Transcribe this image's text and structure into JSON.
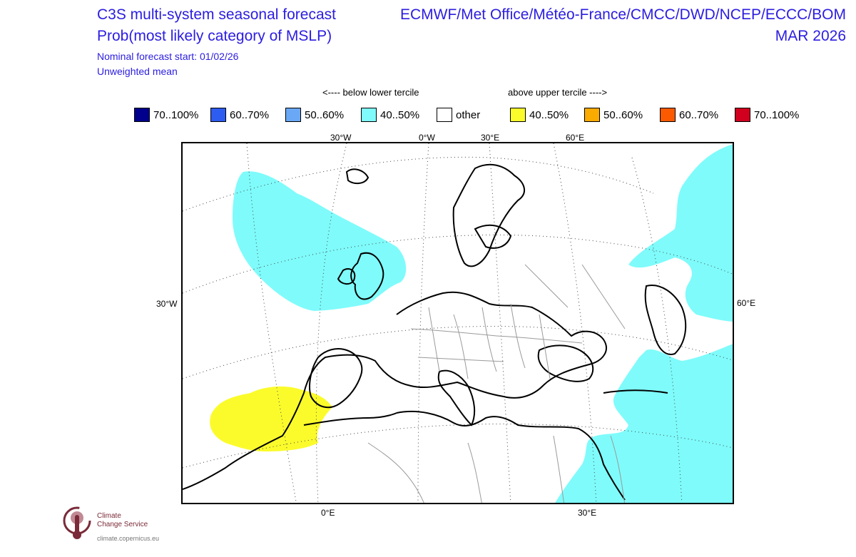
{
  "header": {
    "title_line1": "C3S multi-system seasonal forecast",
    "title_line2": "Prob(most likely category of MSLP)",
    "nominal_start": "Nominal forecast start: 01/02/26",
    "weighting": "Unweighted mean",
    "centres": "ECMWF/Met Office/Météo-France/CMCC/DWD/NCEP/ECCC/BOM",
    "valid_month": "MAR 2026"
  },
  "legend": {
    "below_label": "<---- below lower tercile",
    "above_label": "above upper tercile ---->",
    "items": [
      {
        "label": "70..100%",
        "color": "#00008c"
      },
      {
        "label": "60..70%",
        "color": "#2d5cf0"
      },
      {
        "label": "50..60%",
        "color": "#6aa8f5"
      },
      {
        "label": "40..50%",
        "color": "#7ffbfb"
      },
      {
        "label": "other",
        "color": "#ffffff"
      },
      {
        "label": "40..50%",
        "color": "#fbfb2c"
      },
      {
        "label": "50..60%",
        "color": "#fbaa00"
      },
      {
        "label": "60..70%",
        "color": "#fb5a00"
      },
      {
        "label": "70..100%",
        "color": "#d0001e"
      }
    ]
  },
  "map": {
    "top_labels": [
      "30°W",
      "0°W",
      "30°E",
      "60°E"
    ],
    "left_label": "30°W",
    "right_label": "60°E",
    "bottom_labels": [
      "0°E",
      "30°E"
    ]
  },
  "logo": {
    "line1": "Climate",
    "line2": "Change Service",
    "url": "climate.copernicus.eu",
    "color": "#7a2a38"
  }
}
